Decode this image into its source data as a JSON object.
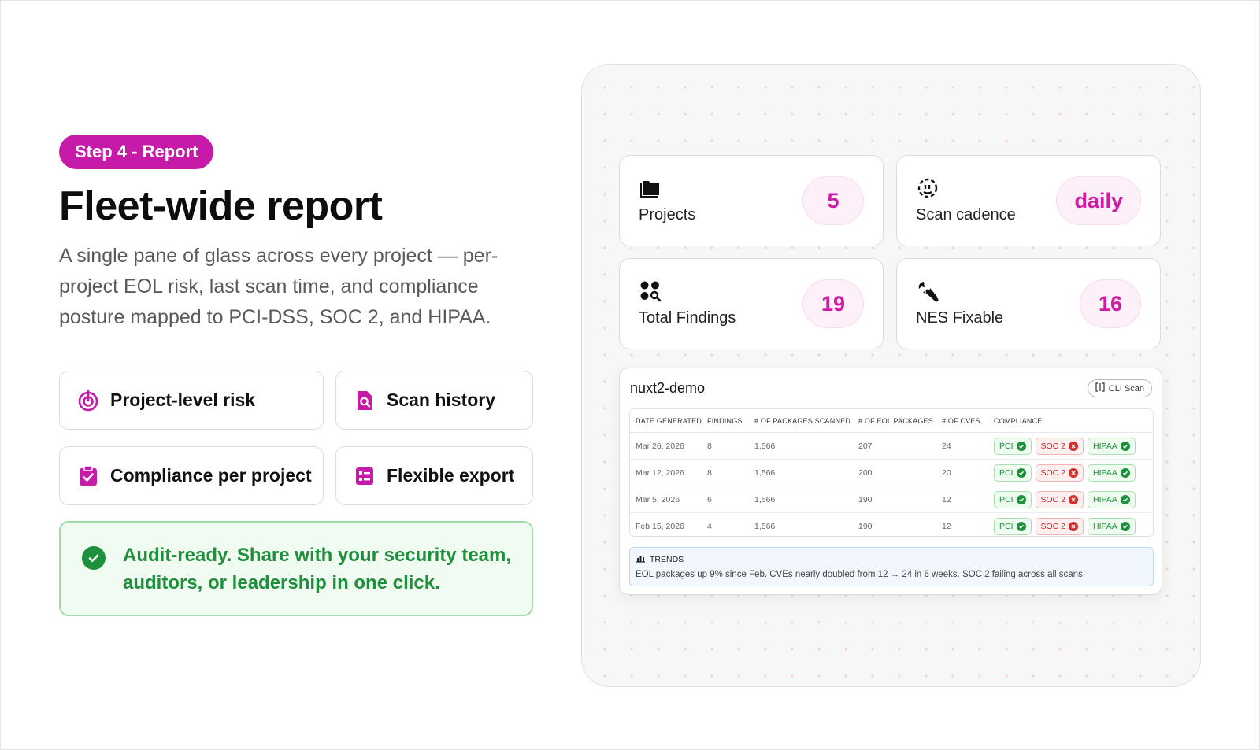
{
  "step_label": "Step 4 - Report",
  "headline": "Fleet-wide report",
  "description": "A single pane of glass across every project — per-project EOL risk, last scan time, and compliance posture mapped to PCI-DSS, SOC 2, and HIPAA.",
  "features": [
    {
      "label": "Project-level risk",
      "icon": "target-icon"
    },
    {
      "label": "Scan history",
      "icon": "document-search-icon"
    },
    {
      "label": "Compliance per project",
      "icon": "clipboard-check-icon"
    },
    {
      "label": "Flexible export",
      "icon": "list-icon"
    }
  ],
  "audit_note": "Audit-ready. Share with your security team, auditors, or leadership in one click.",
  "stats": [
    {
      "label": "Projects",
      "value": "5",
      "icon": "folder-icon"
    },
    {
      "label": "Scan cadence",
      "value": "daily",
      "icon": "refresh-clock-icon"
    },
    {
      "label": "Total Findings",
      "value": "19",
      "icon": "findings-search-icon"
    },
    {
      "label": "NES Fixable",
      "value": "16",
      "icon": "wrench-icon"
    }
  ],
  "report": {
    "project": "nuxt2-demo",
    "cli_label": "CLI Scan",
    "columns": [
      "DATE GENERATED",
      "FINDINGS",
      "# OF PACKAGES SCANNED",
      "# OF EOL PACKAGES",
      "# OF CVES",
      "COMPLIANCE"
    ],
    "rows": [
      {
        "date": "Mar 26, 2026",
        "findings": "8",
        "scanned": "1,566",
        "eol": "207",
        "cves": "24"
      },
      {
        "date": "Mar 12, 2026",
        "findings": "8",
        "scanned": "1,566",
        "eol": "200",
        "cves": "20"
      },
      {
        "date": "Mar 5, 2026",
        "findings": "6",
        "scanned": "1,566",
        "eol": "190",
        "cves": "12"
      },
      {
        "date": "Feb 15, 2026",
        "findings": "4",
        "scanned": "1,566",
        "eol": "190",
        "cves": "12"
      }
    ],
    "compliance": {
      "pci": "PCI",
      "soc2": "SOC 2",
      "hipaa": "HIPAA",
      "pci_status": "pass",
      "soc2_status": "fail",
      "hipaa_status": "pass"
    },
    "trends_label": "TRENDS",
    "trends_text": "EOL packages up 9% since Feb. CVEs nearly doubled from 12 → 24 in 6 weeks. SOC 2 failing across all scans."
  },
  "colors": {
    "accent": "#c61aa8",
    "success": "#1e8f3a",
    "fail": "#d32f2f"
  }
}
